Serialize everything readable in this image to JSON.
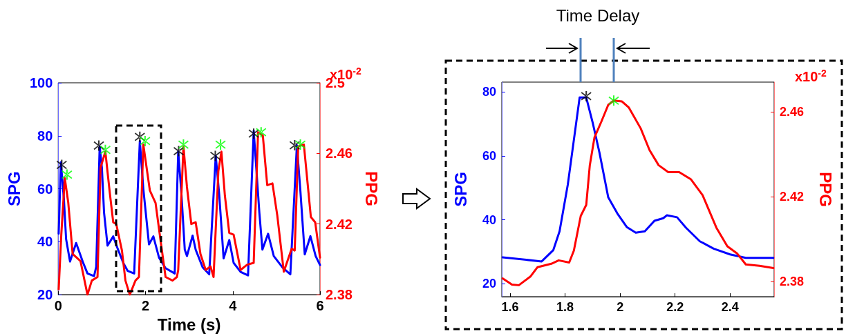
{
  "chart_data": [
    {
      "type": "line",
      "xlabel": "Time (s)",
      "ylabel": "SPG",
      "y2label": "PPG",
      "annotations": [
        "x10$^{-2}$"
      ],
      "xlim": [
        0,
        6
      ],
      "xticks": [
        0,
        2,
        4,
        6
      ],
      "ylim": [
        20,
        100
      ],
      "yticks": [
        20,
        40,
        60,
        80,
        100
      ],
      "y2lim": [
        2.38,
        2.5
      ],
      "y2ticks": [
        2.38,
        2.42,
        2.46,
        2.5
      ],
      "series": [
        {
          "color": "#0000ff",
          "x": [
            0.01,
            0.06,
            0.13,
            0.18,
            0.27,
            0.41,
            0.56,
            0.67,
            0.82,
            0.87,
            0.95,
            1.0,
            1.05,
            1.13,
            1.26,
            1.36,
            1.49,
            1.59,
            1.74,
            1.87,
            1.95,
            2.08,
            2.18,
            2.31,
            2.46,
            2.67,
            2.75,
            2.82,
            2.9,
            2.95,
            3.08,
            3.15,
            3.31,
            3.46,
            3.61,
            3.69,
            3.79,
            3.92,
            4.02,
            4.18,
            4.35,
            4.48,
            4.61,
            4.68,
            4.81,
            4.94,
            5.14,
            5.32,
            5.47,
            5.55,
            5.65,
            5.78,
            5.9,
            6.0
          ],
          "values": [
            43,
            70,
            56,
            41,
            32.5,
            39.5,
            32.5,
            28,
            27,
            30.5,
            76,
            68,
            51,
            38.5,
            42,
            37.5,
            32,
            29,
            28,
            78,
            60,
            39,
            42,
            34,
            30,
            28,
            74,
            59,
            37,
            34.6,
            42.3,
            37,
            30.3,
            27.7,
            72.4,
            57.7,
            33.7,
            40.6,
            32,
            28.6,
            27.3,
            81.9,
            50.9,
            37,
            43,
            34.6,
            30.3,
            27.7,
            76.4,
            59.2,
            35.2,
            42.1,
            34.6,
            31.2
          ]
        },
        {
          "color": "#ff0000",
          "axis": "y2",
          "x": [
            0.01,
            0.07,
            0.15,
            0.23,
            0.33,
            0.51,
            0.67,
            0.77,
            0.9,
            0.97,
            1.08,
            1.18,
            1.26,
            1.33,
            1.46,
            1.54,
            1.64,
            1.77,
            1.85,
            1.95,
            2.1,
            2.23,
            2.36,
            2.46,
            2.62,
            2.72,
            2.75,
            2.87,
            2.95,
            3.05,
            3.15,
            3.26,
            3.38,
            3.49,
            3.56,
            3.67,
            3.74,
            3.82,
            3.92,
            4.02,
            4.18,
            4.33,
            4.48,
            4.58,
            4.69,
            4.79,
            4.91,
            5.02,
            5.17,
            5.35,
            5.42,
            5.5,
            5.63,
            5.79,
            5.89,
            6.0
          ],
          "values": [
            2.383,
            2.414,
            2.446,
            2.432,
            2.403,
            2.399,
            2.38,
            2.388,
            2.39,
            2.452,
            2.461,
            2.438,
            2.421,
            2.42,
            2.405,
            2.388,
            2.38,
            2.388,
            2.39,
            2.465,
            2.439,
            2.432,
            2.408,
            2.39,
            2.388,
            2.39,
            2.394,
            2.464,
            2.441,
            2.42,
            2.421,
            2.403,
            2.394,
            2.396,
            2.39,
            2.45,
            2.461,
            2.436,
            2.415,
            2.414,
            2.394,
            2.397,
            2.398,
            2.472,
            2.47,
            2.442,
            2.443,
            2.425,
            2.393,
            2.406,
            2.405,
            2.464,
            2.465,
            2.424,
            2.421,
            2.401
          ]
        },
        {
          "type": "scatter",
          "marker": "cross",
          "color": "#000000",
          "x": [
            0.08,
            0.93,
            1.87,
            2.76,
            3.6,
            4.48,
            5.42
          ],
          "values": [
            69,
            76.3,
            79.6,
            74.2,
            72.4,
            80.8,
            76.4
          ]
        },
        {
          "type": "scatter",
          "marker": "cross",
          "color": "#00ff00",
          "axis": "y2",
          "x": [
            0.2,
            1.08,
            1.99,
            2.87,
            3.72,
            4.65,
            5.55
          ],
          "values": [
            2.448,
            2.462,
            2.467,
            2.465,
            2.465,
            2.472,
            2.465
          ]
        }
      ]
    },
    {
      "type": "line",
      "ylabel": "SPG",
      "y2label": "PPG",
      "annotations": [
        "x10$^{-2}$",
        "Time Delay"
      ],
      "xlim": [
        1.57,
        2.56
      ],
      "xticks": [
        1.6,
        1.8,
        2,
        2.2,
        2.4
      ],
      "ylim": [
        16,
        83
      ],
      "yticks": [
        20,
        40,
        60,
        80
      ],
      "y2lim": [
        2.373,
        2.474
      ],
      "y2ticks": [
        2.38,
        2.42,
        2.46
      ],
      "series": [
        {
          "color": "#0000ff",
          "x": [
            1.573,
            1.715,
            1.757,
            1.78,
            1.81,
            1.84,
            1.853,
            1.877,
            1.9,
            1.925,
            1.957,
            1.99,
            2.025,
            2.057,
            2.09,
            2.125,
            2.157,
            2.17,
            2.207,
            2.24,
            2.29,
            2.34,
            2.4,
            2.457,
            2.557
          ],
          "values": [
            28.3,
            27,
            30.5,
            36.4,
            51,
            70,
            78.2,
            78.2,
            70.5,
            61,
            47,
            42,
            37.7,
            36,
            36.4,
            39.7,
            40.5,
            41.4,
            40.8,
            37.5,
            33.3,
            31,
            29.2,
            28.1,
            28.1
          ]
        },
        {
          "color": "#ff0000",
          "axis": "y2",
          "x": [
            1.573,
            1.607,
            1.632,
            1.675,
            1.7,
            1.75,
            1.777,
            1.815,
            1.832,
            1.857,
            1.877,
            1.89,
            1.907,
            1.932,
            1.957,
            1.977,
            2.007,
            2.032,
            2.075,
            2.107,
            2.14,
            2.175,
            2.215,
            2.257,
            2.3,
            2.35,
            2.39,
            2.425,
            2.457,
            2.507,
            2.557
          ],
          "values": [
            2.3816,
            2.3787,
            2.3784,
            2.3826,
            2.3869,
            2.3885,
            2.3901,
            2.3891,
            2.3947,
            2.411,
            2.4162,
            2.4349,
            2.448,
            2.4554,
            2.4633,
            2.4653,
            2.4649,
            2.462,
            2.4522,
            2.442,
            2.4349,
            2.4316,
            2.4316,
            2.4283,
            2.4208,
            2.4055,
            2.3967,
            2.3934,
            2.3882,
            2.3875,
            2.3865
          ]
        },
        {
          "type": "scatter",
          "marker": "cross",
          "color": "#000000",
          "x": [
            1.877
          ],
          "values": [
            78.6
          ]
        },
        {
          "type": "scatter",
          "marker": "cross",
          "color": "#00ff00",
          "axis": "y2",
          "x": [
            1.977
          ],
          "values": [
            2.4653
          ]
        }
      ]
    }
  ]
}
